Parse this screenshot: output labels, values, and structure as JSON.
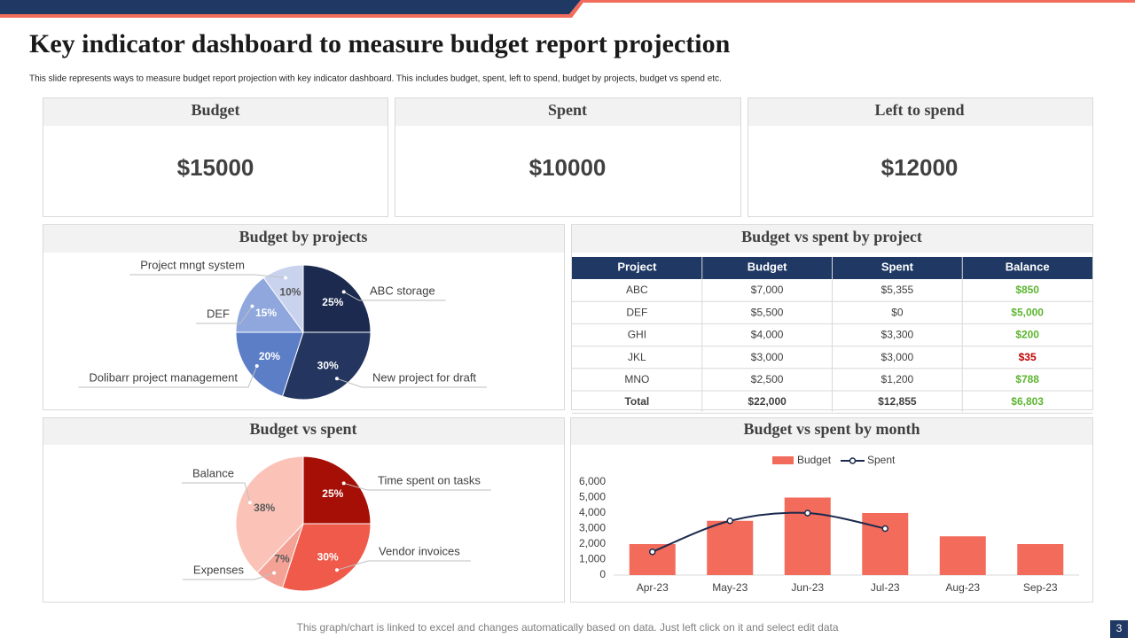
{
  "title": "Key indicator dashboard to measure budget report projection",
  "subtitle": "This slide represents ways to measure budget report projection with key indicator dashboard. This includes budget, spent, left to spend, budget by projects, budget vs spend etc.",
  "kpis": [
    {
      "label": "Budget",
      "value": "$15000"
    },
    {
      "label": "Spent",
      "value": "$10000"
    },
    {
      "label": "Left to spend",
      "value": "$12000"
    }
  ],
  "table": {
    "title": "Budget vs spent by project",
    "header": [
      "Project",
      "Budget",
      "Spent",
      "Balance"
    ],
    "rows": [
      [
        "ABC",
        "$7,000",
        "$5,355",
        "$850"
      ],
      [
        "DEF",
        "$5,500",
        "$0",
        "$5,000"
      ],
      [
        "GHI",
        "$4,000",
        "$3,300",
        "$200"
      ],
      [
        "JKL",
        "$3,000",
        "$3,000",
        "$35"
      ],
      [
        "MNO",
        "$2,500",
        "$1,200",
        "$788"
      ],
      [
        "Total",
        "$22,000",
        "$12,855",
        "$6,803"
      ]
    ]
  },
  "chart_data": [
    {
      "type": "pie",
      "title": "Budget by projects",
      "categories": [
        "ABC storage",
        "New project for draft",
        "Dolibarr project management",
        "DEF",
        "Project mngt system"
      ],
      "values": [
        25,
        30,
        20,
        15,
        10
      ],
      "value_labels": [
        "25%",
        "30%",
        "20%",
        "15%",
        "10%"
      ],
      "colors": [
        "#1b2a4e",
        "#24365f",
        "#5b7ec6",
        "#8fa7dd",
        "#c9d3ee"
      ]
    },
    {
      "type": "pie",
      "title": "Budget vs spent",
      "categories": [
        "Time spent on tasks",
        "Vendor invoices",
        "Expenses",
        "Balance"
      ],
      "values": [
        25,
        30,
        7,
        38
      ],
      "value_labels": [
        "25%",
        "30%",
        "7%",
        "38%"
      ],
      "colors": [
        "#a50f05",
        "#f05a4a",
        "#f4a296",
        "#fbc3b8"
      ]
    },
    {
      "type": "bar",
      "title": "Budget vs spent by month",
      "categories": [
        "Apr-23",
        "May-23",
        "Jun-23",
        "Jul-23",
        "Aug-23",
        "Sep-23"
      ],
      "series": [
        {
          "name": "Budget",
          "type": "bar",
          "color": "#f26b5b",
          "values": [
            2000,
            3500,
            5000,
            4000,
            2500,
            2000
          ]
        },
        {
          "name": "Spent",
          "type": "line",
          "color": "#1b2a4e",
          "values": [
            1500,
            3500,
            4000,
            3000,
            null,
            null
          ]
        }
      ],
      "ylim": [
        0,
        6000
      ],
      "yticks": [
        0,
        {
          "value": 1000,
          "label": "1,000"
        },
        {
          "value": 2000,
          "label": "2,000"
        },
        {
          "value": 3000,
          "label": "3,000"
        },
        {
          "value": 4000,
          "label": "4,000"
        },
        {
          "value": 5000,
          "label": "5,000"
        },
        {
          "value": 6000,
          "label": "6,000"
        }
      ],
      "grid": false,
      "legend": "top"
    }
  ],
  "footer": "This graph/chart is linked to excel and changes automatically based on data. Just left click on it and select edit data",
  "page_number": "3"
}
